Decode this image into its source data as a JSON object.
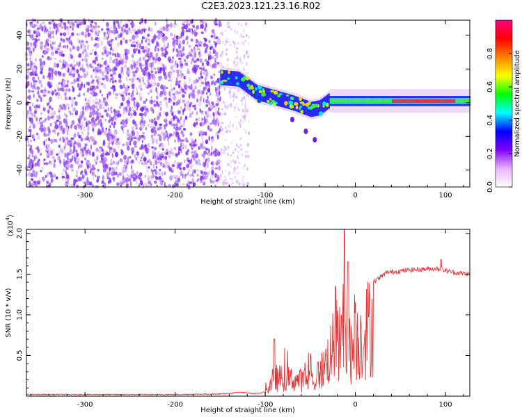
{
  "title": "C2E3.2023.121.23.16.R02",
  "colors": {
    "snr_line": "#e83232",
    "noise_purple": "#7b2ff0",
    "axis": "#000000"
  },
  "chart_data": [
    {
      "type": "heatmap",
      "xlabel": "Height of straight line (km)",
      "ylabel": "Frequency (Hz)",
      "xlim": [
        -365,
        127
      ],
      "ylim": [
        -50,
        49
      ],
      "x_ticks": [
        -300,
        -200,
        -100,
        0,
        100
      ],
      "y_ticks": [
        -40,
        -20,
        0,
        20,
        40
      ],
      "colorbar": {
        "label": "Normalized spectral amplitude",
        "range": [
          0.0,
          1.0
        ],
        "ticks": [
          0.0,
          0.2,
          0.4,
          0.6,
          0.8
        ],
        "colormap": [
          "#ffffff",
          "#e9b4ff",
          "#8000ff",
          "#0000ff",
          "#00ffff",
          "#00ff00",
          "#ffff00",
          "#ff8000",
          "#ff0000",
          "#ff0080"
        ]
      },
      "features": {
        "noise_region_x": [
          -365,
          -150
        ],
        "scatter_region_x": [
          -150,
          -118
        ],
        "signal_track": [
          {
            "x": -150,
            "y": 15
          },
          {
            "x": -130,
            "y": 14
          },
          {
            "x": -110,
            "y": 6
          },
          {
            "x": -90,
            "y": 3
          },
          {
            "x": -70,
            "y": 0
          },
          {
            "x": -50,
            "y": -4
          },
          {
            "x": -40,
            "y": -3
          },
          {
            "x": -30,
            "y": 1
          },
          {
            "x": 0,
            "y": 1
          },
          {
            "x": 50,
            "y": 1
          },
          {
            "x": 100,
            "y": 1
          },
          {
            "x": 127,
            "y": 1
          }
        ],
        "branch_track": [
          {
            "x": -70,
            "y": -10
          },
          {
            "x": -55,
            "y": -17
          },
          {
            "x": -45,
            "y": -22
          }
        ]
      }
    },
    {
      "type": "line",
      "xlabel": "Height of straight line (km)",
      "ylabel": "SNR (10 * v/v)",
      "y_multiplier": "(x10",
      "y_multiplier_exp": "4",
      "xlim": [
        -365,
        127
      ],
      "ylim": [
        0,
        2.05
      ],
      "x_ticks": [
        -300,
        -200,
        -100,
        0,
        100
      ],
      "y_ticks": [
        "0.5",
        "1.0",
        "1.5",
        "2.0"
      ],
      "y_tick_values": [
        0.5,
        1.0,
        1.5,
        2.0
      ],
      "envelope": [
        {
          "x": -365,
          "y": 0.02
        },
        {
          "x": -200,
          "y": 0.02
        },
        {
          "x": -140,
          "y": 0.03
        },
        {
          "x": -130,
          "y": 0.05
        },
        {
          "x": -110,
          "y": 0.03
        },
        {
          "x": -100,
          "y": 0.05
        },
        {
          "x": -90,
          "y": 0.35
        },
        {
          "x": -75,
          "y": 0.32
        },
        {
          "x": -60,
          "y": 0.3
        },
        {
          "x": -45,
          "y": 0.3
        },
        {
          "x": -35,
          "y": 0.55
        },
        {
          "x": -25,
          "y": 0.9
        },
        {
          "x": -15,
          "y": 1.0
        },
        {
          "x": -5,
          "y": 0.85
        },
        {
          "x": 0,
          "y": 0.95
        },
        {
          "x": 10,
          "y": 1.2
        },
        {
          "x": 20,
          "y": 1.4
        },
        {
          "x": 35,
          "y": 1.52
        },
        {
          "x": 60,
          "y": 1.55
        },
        {
          "x": 90,
          "y": 1.57
        },
        {
          "x": 110,
          "y": 1.52
        },
        {
          "x": 127,
          "y": 1.5
        }
      ],
      "spikes": [
        {
          "x": -90,
          "y": 0.7
        },
        {
          "x": -22,
          "y": 1.35
        },
        {
          "x": -12,
          "y": 2.05
        },
        {
          "x": -8,
          "y": 1.65
        },
        {
          "x": 95,
          "y": 1.68
        }
      ]
    }
  ]
}
